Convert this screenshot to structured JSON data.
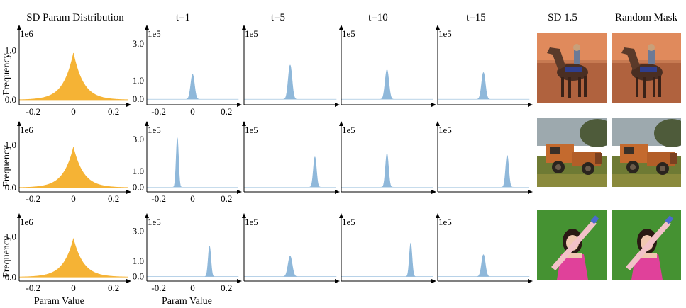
{
  "columns": [
    "SD Param Distribution",
    "t=1",
    "t=5",
    "t=10",
    "t=15",
    "SD 1.5",
    "Random Mask"
  ],
  "shared": {
    "ylabel": "Frequency",
    "xlabel": "Param Value"
  },
  "colors": {
    "sd": "#F5B335",
    "diff": "#8FB8DA"
  },
  "images": [
    {
      "row": 0,
      "content": "horse-rider-on-red-desert-icon"
    },
    {
      "row": 1,
      "content": "rusty-orange-truck-in-field-icon"
    },
    {
      "row": 2,
      "content": "girl-holding-bat-on-green-icon"
    }
  ],
  "chart_data": [
    {
      "type": "area",
      "row": 0,
      "col": 0,
      "title": "SD Param Distribution",
      "ylabel": "Frequency",
      "xlabel": "",
      "multiplier": "1e6",
      "xlim": [
        -0.27,
        0.27
      ],
      "ylim": [
        -0.1,
        1.25
      ],
      "xticks": [
        "-0.2",
        "0",
        "0.2"
      ],
      "xtick_values": [
        -0.2,
        0,
        0.2
      ],
      "yticks": [
        "0.0",
        "1.0"
      ],
      "ytick_values": [
        0,
        1
      ],
      "dist": {
        "kind": "laplace",
        "center": 0.0,
        "scale": 0.05,
        "peak": 0.95
      },
      "color": "#F5B335"
    },
    {
      "type": "area",
      "row": 0,
      "col": 1,
      "title": "t=1",
      "multiplier": "1e5",
      "xlim": [
        -0.27,
        0.27
      ],
      "ylim": [
        -0.3,
        3.3
      ],
      "xticks": [
        "-0.2",
        "0",
        "0.2"
      ],
      "xtick_values": [
        -0.2,
        0,
        0.2
      ],
      "yticks": [
        "0.0",
        "1.0",
        "3.0"
      ],
      "ytick_values": [
        0,
        1,
        3
      ],
      "dist": {
        "kind": "gauss",
        "center": 0.0,
        "sd": 0.011,
        "peak": 1.35
      },
      "color": "#8FB8DA"
    },
    {
      "type": "area",
      "row": 0,
      "col": 2,
      "title": "t=5",
      "multiplier": "1e5",
      "xlim": [
        -0.27,
        0.27
      ],
      "ylim": [
        -0.3,
        3.3
      ],
      "dist": {
        "kind": "gauss",
        "center": 0.0,
        "sd": 0.011,
        "peak": 1.85
      },
      "color": "#8FB8DA"
    },
    {
      "type": "area",
      "row": 0,
      "col": 3,
      "title": "t=10",
      "multiplier": "1e5",
      "xlim": [
        -0.27,
        0.27
      ],
      "ylim": [
        -0.3,
        3.3
      ],
      "dist": {
        "kind": "gauss",
        "center": 0.0,
        "sd": 0.011,
        "peak": 1.6
      },
      "color": "#8FB8DA"
    },
    {
      "type": "area",
      "row": 0,
      "col": 4,
      "title": "t=15",
      "multiplier": "1e5",
      "xlim": [
        -0.27,
        0.27
      ],
      "ylim": [
        -0.3,
        3.3
      ],
      "dist": {
        "kind": "gauss",
        "center": 0.0,
        "sd": 0.011,
        "peak": 1.45
      },
      "color": "#8FB8DA"
    },
    {
      "type": "area",
      "row": 1,
      "col": 0,
      "ylabel": "Frequency",
      "multiplier": "1e6",
      "xlim": [
        -0.27,
        0.27
      ],
      "ylim": [
        -0.1,
        1.25
      ],
      "xticks": [
        "-0.2",
        "0",
        "0.2"
      ],
      "xtick_values": [
        -0.2,
        0,
        0.2
      ],
      "yticks": [
        "0.0",
        "1.0"
      ],
      "ytick_values": [
        0,
        1
      ],
      "dist": {
        "kind": "laplace",
        "center": 0.0,
        "scale": 0.05,
        "peak": 0.95
      },
      "color": "#F5B335"
    },
    {
      "type": "area",
      "row": 1,
      "col": 1,
      "multiplier": "1e5",
      "xlim": [
        -0.27,
        0.27
      ],
      "ylim": [
        -0.3,
        3.3
      ],
      "xticks": [
        "-0.2",
        "0",
        "0.2"
      ],
      "xtick_values": [
        -0.2,
        0,
        0.2
      ],
      "yticks": [
        "0.0",
        "1.0",
        "3.0"
      ],
      "ytick_values": [
        0,
        1,
        3
      ],
      "dist": {
        "kind": "gauss",
        "center": -0.09,
        "sd": 0.007,
        "peak": 3.1
      },
      "color": "#8FB8DA"
    },
    {
      "type": "area",
      "row": 1,
      "col": 2,
      "multiplier": "1e5",
      "xlim": [
        -0.27,
        0.27
      ],
      "ylim": [
        -0.3,
        3.3
      ],
      "dist": {
        "kind": "gauss",
        "center": 0.145,
        "sd": 0.009,
        "peak": 1.9
      },
      "color": "#8FB8DA"
    },
    {
      "type": "area",
      "row": 1,
      "col": 3,
      "multiplier": "1e5",
      "xlim": [
        -0.27,
        0.27
      ],
      "ylim": [
        -0.3,
        3.3
      ],
      "dist": {
        "kind": "gauss",
        "center": 0.0,
        "sd": 0.009,
        "peak": 2.1
      },
      "color": "#8FB8DA"
    },
    {
      "type": "area",
      "row": 1,
      "col": 4,
      "multiplier": "1e5",
      "xlim": [
        -0.27,
        0.27
      ],
      "ylim": [
        -0.3,
        3.3
      ],
      "dist": {
        "kind": "gauss",
        "center": 0.14,
        "sd": 0.009,
        "peak": 2.0
      },
      "color": "#8FB8DA"
    },
    {
      "type": "area",
      "row": 2,
      "col": 0,
      "ylabel": "Frequency",
      "xlabel": "Param Value",
      "multiplier": "1e6",
      "xlim": [
        -0.27,
        0.27
      ],
      "ylim": [
        -0.1,
        1.25
      ],
      "xticks": [
        "-0.2",
        "0",
        "0.2"
      ],
      "xtick_values": [
        -0.2,
        0,
        0.2
      ],
      "yticks": [
        "0.0",
        "1.0"
      ],
      "ytick_values": [
        0,
        1
      ],
      "dist": {
        "kind": "laplace",
        "center": 0.0,
        "scale": 0.05,
        "peak": 0.95
      },
      "color": "#F5B335"
    },
    {
      "type": "area",
      "row": 2,
      "col": 1,
      "xlabel": "Param Value",
      "multiplier": "1e5",
      "xlim": [
        -0.27,
        0.27
      ],
      "ylim": [
        -0.3,
        3.3
      ],
      "xticks": [
        "-0.2",
        "0",
        "0.2"
      ],
      "xtick_values": [
        -0.2,
        0,
        0.2
      ],
      "yticks": [
        "0.0",
        "1.0",
        "3.0"
      ],
      "ytick_values": [
        0,
        1,
        3
      ],
      "dist": {
        "kind": "gauss",
        "center": 0.1,
        "sd": 0.008,
        "peak": 2.0
      },
      "color": "#8FB8DA"
    },
    {
      "type": "area",
      "row": 2,
      "col": 2,
      "multiplier": "1e5",
      "xlim": [
        -0.27,
        0.27
      ],
      "ylim": [
        -0.3,
        3.3
      ],
      "dist": {
        "kind": "gauss",
        "center": 0.0,
        "sd": 0.012,
        "peak": 1.35
      },
      "color": "#8FB8DA"
    },
    {
      "type": "area",
      "row": 2,
      "col": 3,
      "multiplier": "1e5",
      "xlim": [
        -0.27,
        0.27
      ],
      "ylim": [
        -0.3,
        3.3
      ],
      "dist": {
        "kind": "gauss",
        "center": 0.14,
        "sd": 0.008,
        "peak": 2.2
      },
      "color": "#8FB8DA"
    },
    {
      "type": "area",
      "row": 2,
      "col": 4,
      "multiplier": "1e5",
      "xlim": [
        -0.27,
        0.27
      ],
      "ylim": [
        -0.3,
        3.3
      ],
      "dist": {
        "kind": "gauss",
        "center": 0.0,
        "sd": 0.011,
        "peak": 1.45
      },
      "color": "#8FB8DA"
    }
  ]
}
